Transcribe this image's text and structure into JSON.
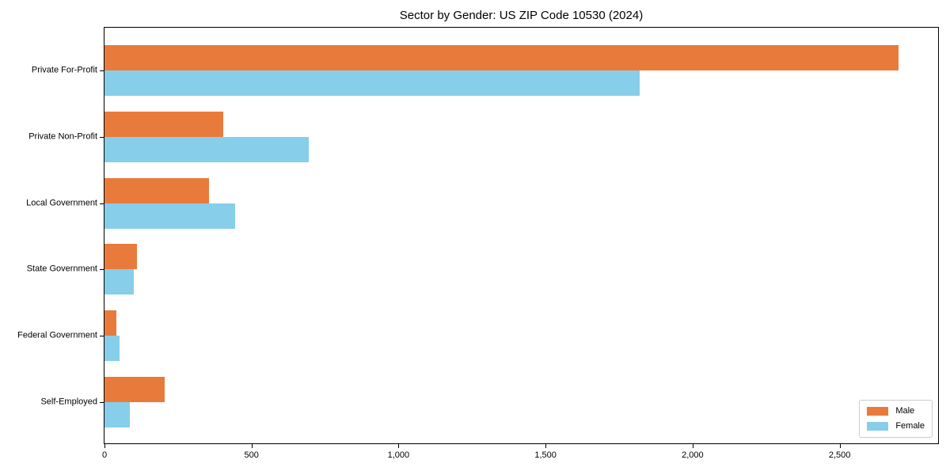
{
  "chart_data": {
    "type": "bar",
    "orientation": "horizontal",
    "title": "Sector by Gender: US ZIP Code 10530 (2024)",
    "categories": [
      "Private For-Profit",
      "Private Non-Profit",
      "Local Government",
      "State Government",
      "Federal Government",
      "Self-Employed"
    ],
    "series": [
      {
        "name": "Male",
        "color": "#e87b3c",
        "values": [
          2700,
          405,
          355,
          110,
          40,
          205
        ]
      },
      {
        "name": "Female",
        "color": "#87ceeb",
        "values": [
          1820,
          695,
          445,
          100,
          50,
          85
        ]
      }
    ],
    "xlabel": "",
    "ylabel": "",
    "xlim": [
      0,
      2835
    ],
    "xticks": [
      0,
      500,
      1000,
      1500,
      2000,
      2500
    ],
    "xtick_labels": [
      "0",
      "500",
      "1,000",
      "1,500",
      "2,000",
      "2,500"
    ],
    "grid": false,
    "legend": {
      "position": "lower right"
    },
    "colors": {
      "male": "#e87b3c",
      "female": "#87ceeb",
      "spine": "#000000",
      "legend_border": "#cccccc",
      "background": "#ffffff"
    }
  }
}
